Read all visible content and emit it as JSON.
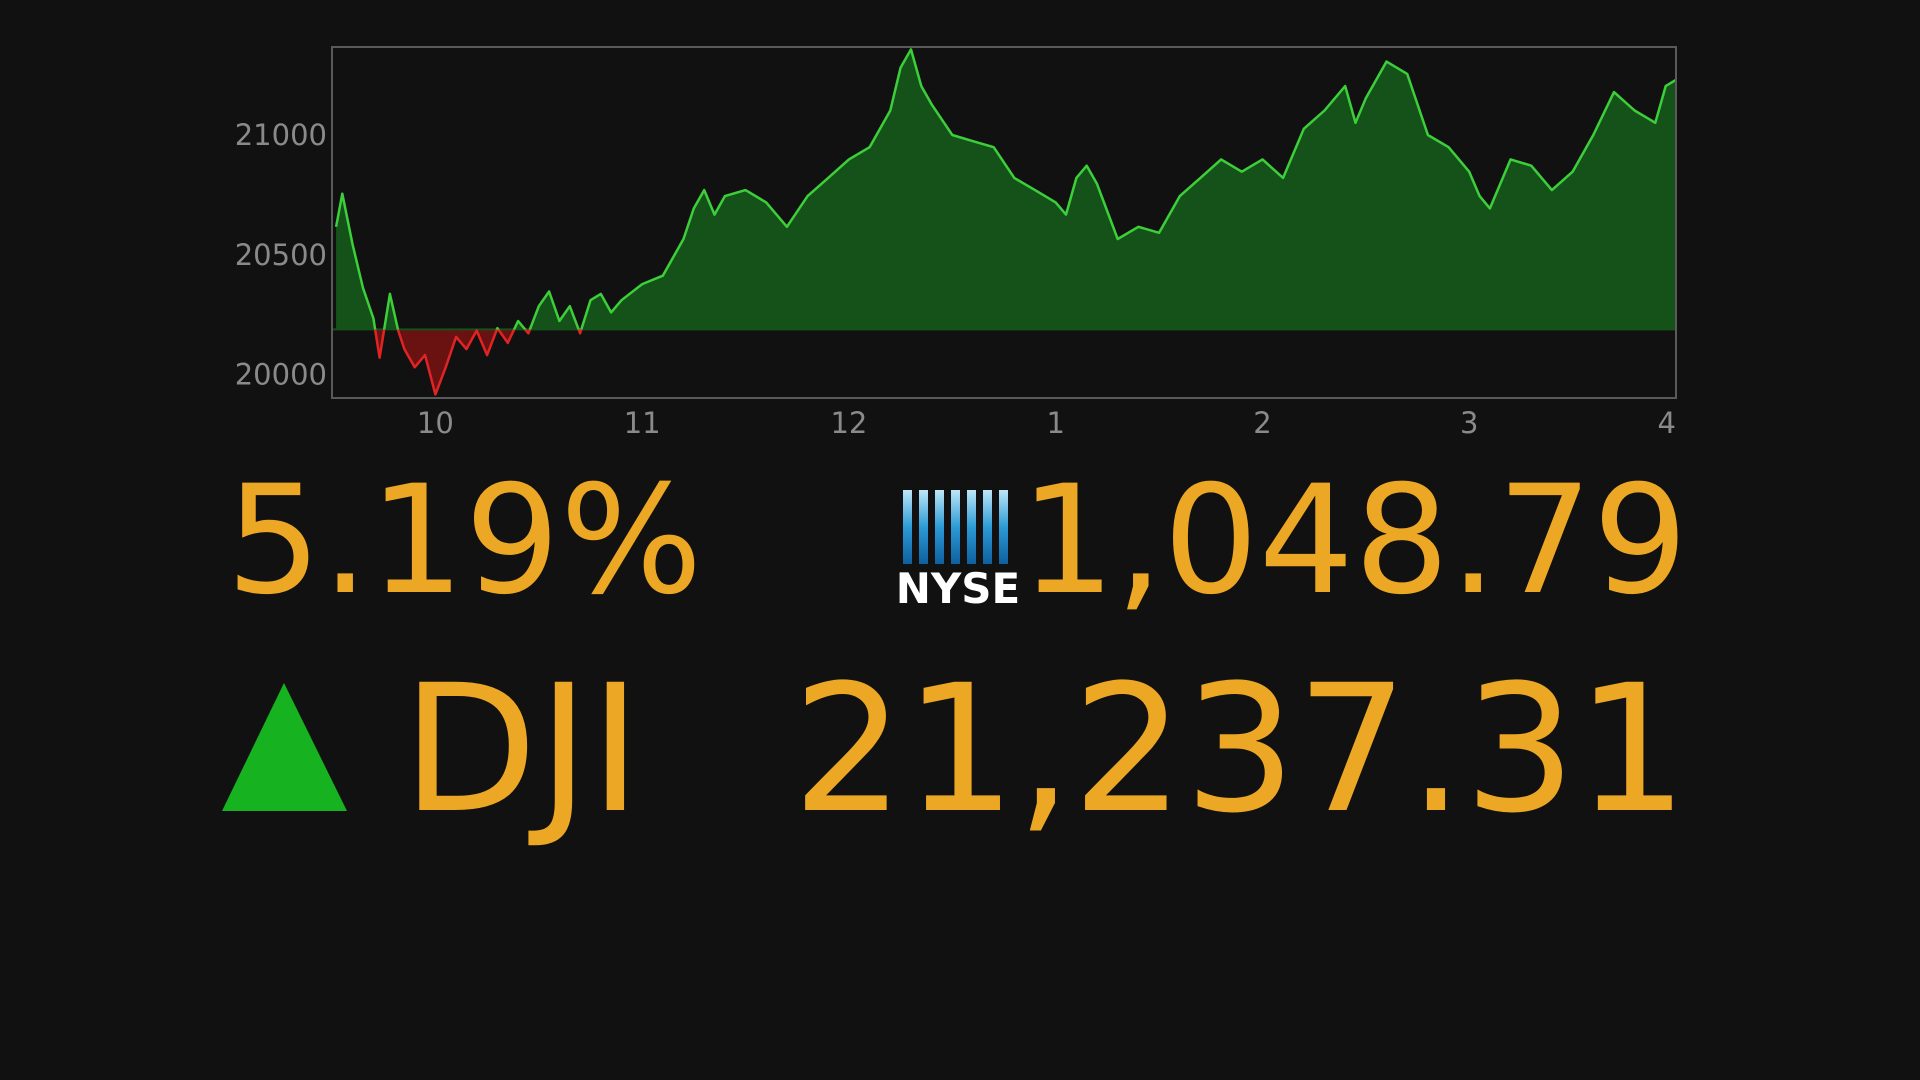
{
  "chart_data": {
    "type": "area",
    "x": [
      9.52,
      9.55,
      9.6,
      9.65,
      9.7,
      9.73,
      9.78,
      9.82,
      9.85,
      9.9,
      9.95,
      10.0,
      10.05,
      10.1,
      10.15,
      10.2,
      10.25,
      10.3,
      10.35,
      10.4,
      10.45,
      10.5,
      10.55,
      10.6,
      10.65,
      10.7,
      10.75,
      10.8,
      10.85,
      10.9,
      11.0,
      11.1,
      11.15,
      11.2,
      11.25,
      11.3,
      11.35,
      11.4,
      11.5,
      11.6,
      11.7,
      11.8,
      11.9,
      12.0,
      12.1,
      12.2,
      12.25,
      12.3,
      12.35,
      12.4,
      12.5,
      12.6,
      12.7,
      12.8,
      12.9,
      13.0,
      13.05,
      13.1,
      13.15,
      13.2,
      13.3,
      13.4,
      13.5,
      13.6,
      13.7,
      13.8,
      13.9,
      14.0,
      14.1,
      14.2,
      14.3,
      14.4,
      14.45,
      14.5,
      14.6,
      14.7,
      14.8,
      14.9,
      15.0,
      15.05,
      15.1,
      15.2,
      15.3,
      15.4,
      15.5,
      15.6,
      15.7,
      15.8,
      15.9,
      15.95,
      16.0
    ],
    "values": [
      20617,
      20755,
      20541,
      20362,
      20235,
      20071,
      20337,
      20184,
      20107,
      20031,
      20082,
      19918,
      20031,
      20158,
      20107,
      20184,
      20082,
      20194,
      20133,
      20224,
      20173,
      20286,
      20347,
      20224,
      20286,
      20173,
      20311,
      20337,
      20260,
      20311,
      20378,
      20413,
      20490,
      20566,
      20694,
      20770,
      20668,
      20745,
      20770,
      20719,
      20617,
      20745,
      20821,
      20898,
      20949,
      21102,
      21281,
      21357,
      21204,
      21128,
      21000,
      20974,
      20949,
      20821,
      20770,
      20719,
      20668,
      20821,
      20872,
      20796,
      20566,
      20617,
      20592,
      20745,
      20821,
      20898,
      20847,
      20898,
      20821,
      21026,
      21102,
      21204,
      21051,
      21153,
      21306,
      21255,
      21000,
      20949,
      20847,
      20745,
      20694,
      20898,
      20872,
      20770,
      20847,
      21000,
      21179,
      21102,
      21051,
      21204,
      21230
    ],
    "xlim": [
      9.5,
      16
    ],
    "ylim": [
      19903,
      21367
    ],
    "xticks": [
      10,
      11,
      12,
      {
        "value": 13,
        "label": "1"
      },
      {
        "value": 14,
        "label": "2"
      },
      {
        "value": 15,
        "label": "3"
      },
      {
        "value": 16,
        "label": "4"
      }
    ],
    "yticks": [
      20000,
      20500,
      21000
    ],
    "baseline": 20189,
    "colors": {
      "up": "#3ccf3a",
      "down": "#e02424"
    }
  },
  "quote": {
    "change": "5.19%",
    "exchange": "NYSE",
    "points": "1,048.79",
    "symbol": "DJI",
    "price": "21,237.31",
    "direction": "up"
  }
}
